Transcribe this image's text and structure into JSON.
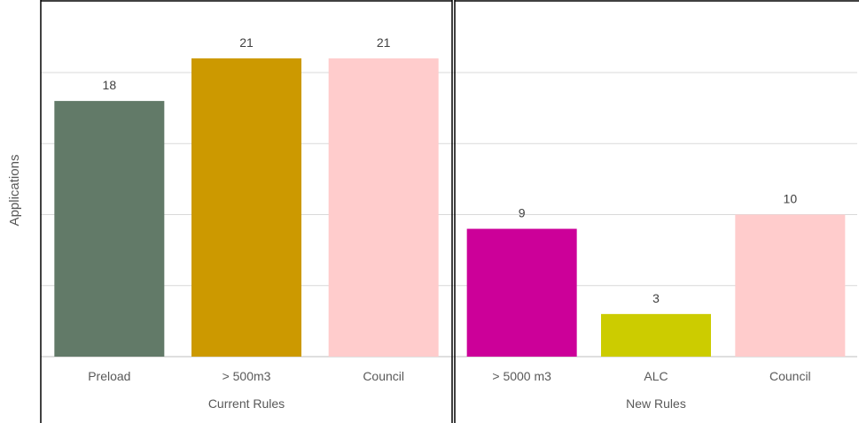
{
  "chart_data": {
    "type": "bar",
    "ylabel": "Applications",
    "ylim": [
      0,
      25
    ],
    "grid": true,
    "groups": [
      {
        "name": "Current Rules",
        "bars": [
          {
            "category": "Preload",
            "value": 18,
            "color": "#627A68"
          },
          {
            "category": "> 500m3",
            "value": 21,
            "color": "#CC9900"
          },
          {
            "category": "Council",
            "value": 21,
            "color": "#FFCCCC"
          }
        ]
      },
      {
        "name": "New Rules",
        "bars": [
          {
            "category": "> 5000 m3",
            "value": 9,
            "color": "#CC0099"
          },
          {
            "category": "ALC",
            "value": 3,
            "color": "#CCCC00"
          },
          {
            "category": "Council",
            "value": 10,
            "color": "#FFCCCC"
          }
        ]
      }
    ]
  }
}
